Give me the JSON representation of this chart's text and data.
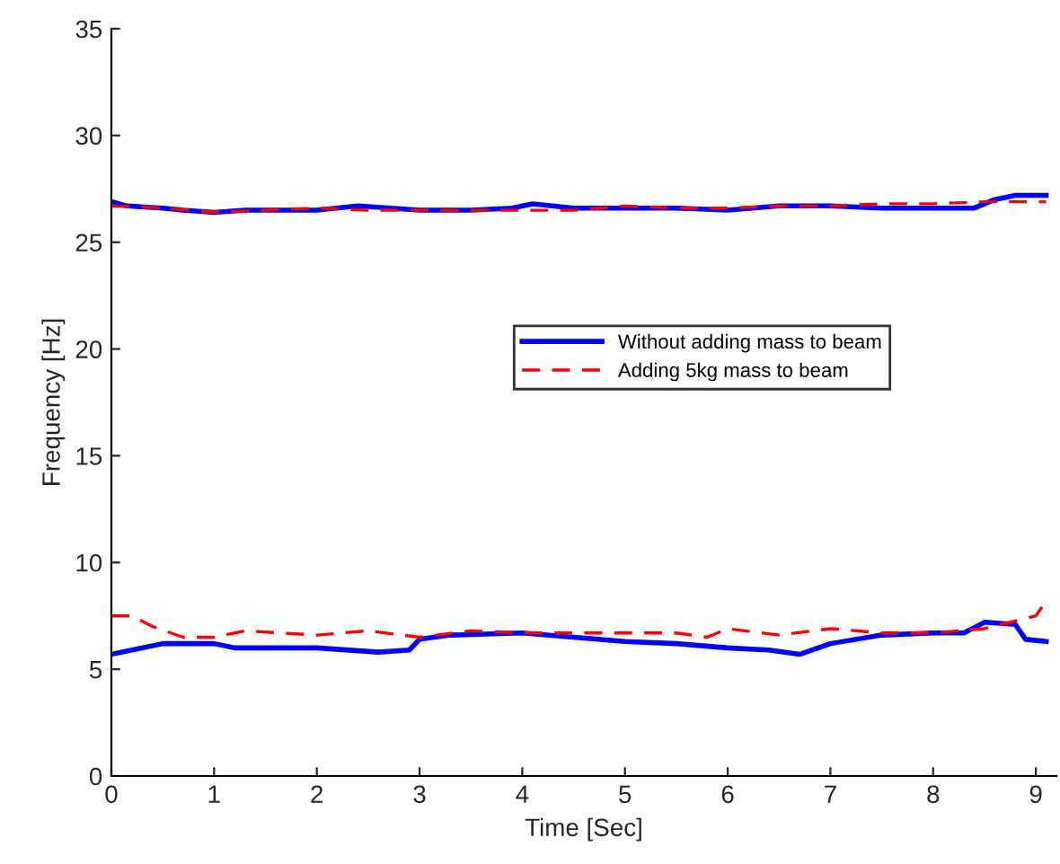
{
  "chart_data": {
    "type": "line",
    "xlabel": "Time [Sec]",
    "ylabel": "Frequency [Hz]",
    "xlim": [
      0,
      9.2
    ],
    "ylim": [
      0,
      35
    ],
    "xticks": [
      0,
      1,
      2,
      3,
      4,
      5,
      6,
      7,
      8,
      9
    ],
    "yticks": [
      0,
      5,
      10,
      15,
      20,
      25,
      30,
      35
    ],
    "grid": false,
    "legend": "center",
    "marker": "none",
    "series": [
      {
        "name": "Without adding mass to beam",
        "color": "#0000ff",
        "line_style": "solid",
        "x": [
          0,
          0.15,
          0.5,
          0.7,
          1.0,
          1.3,
          2.0,
          2.4,
          3.0,
          3.5,
          3.9,
          4.1,
          4.5,
          5.0,
          5.5,
          6.0,
          6.5,
          7.0,
          7.5,
          8.0,
          8.4,
          8.6,
          8.8,
          9.1
        ],
        "values": [
          26.9,
          26.7,
          26.6,
          26.5,
          26.4,
          26.5,
          26.5,
          26.7,
          26.5,
          26.5,
          26.6,
          26.8,
          26.6,
          26.6,
          26.6,
          26.5,
          26.7,
          26.7,
          26.6,
          26.6,
          26.6,
          27.0,
          27.2,
          27.2
        ]
      },
      {
        "color": "#0000ff",
        "line_style": "solid",
        "x": [
          0,
          0.2,
          0.5,
          1.0,
          1.2,
          2.0,
          2.6,
          2.9,
          3.0,
          3.3,
          4.0,
          4.5,
          5.0,
          5.5,
          6.0,
          6.4,
          6.7,
          7.0,
          7.5,
          8.0,
          8.3,
          8.5,
          8.8,
          8.9,
          9.1
        ],
        "values": [
          5.7,
          5.9,
          6.2,
          6.2,
          6.0,
          6.0,
          5.8,
          5.9,
          6.4,
          6.6,
          6.7,
          6.5,
          6.3,
          6.2,
          6.0,
          5.9,
          5.7,
          6.2,
          6.6,
          6.7,
          6.7,
          7.2,
          7.1,
          6.4,
          6.3
        ]
      },
      {
        "name": "Adding 5kg mass to beam",
        "color": "#ff0000",
        "line_style": "dashed",
        "x": [
          0,
          0.5,
          1.0,
          1.5,
          2.0,
          2.5,
          3.0,
          3.5,
          4.0,
          4.5,
          5.0,
          5.5,
          6.0,
          6.5,
          7.0,
          7.5,
          8.0,
          8.5,
          9.1
        ],
        "values": [
          26.7,
          26.6,
          26.4,
          26.5,
          26.6,
          26.5,
          26.5,
          26.5,
          26.5,
          26.5,
          26.7,
          26.6,
          26.6,
          26.7,
          26.7,
          26.8,
          26.8,
          26.9,
          26.9
        ]
      },
      {
        "color": "#ff0000",
        "line_style": "dashed",
        "x": [
          0,
          0.2,
          0.4,
          0.7,
          1.0,
          1.3,
          2.0,
          2.5,
          3.0,
          3.5,
          4.0,
          5.0,
          5.5,
          5.8,
          6.0,
          6.5,
          7.0,
          7.5,
          8.0,
          8.5,
          9.0,
          9.1
        ],
        "values": [
          7.5,
          7.5,
          7.0,
          6.5,
          6.5,
          6.8,
          6.6,
          6.8,
          6.5,
          6.8,
          6.7,
          6.7,
          6.7,
          6.5,
          6.9,
          6.6,
          6.9,
          6.7,
          6.7,
          6.9,
          7.5,
          8.2
        ]
      }
    ]
  }
}
